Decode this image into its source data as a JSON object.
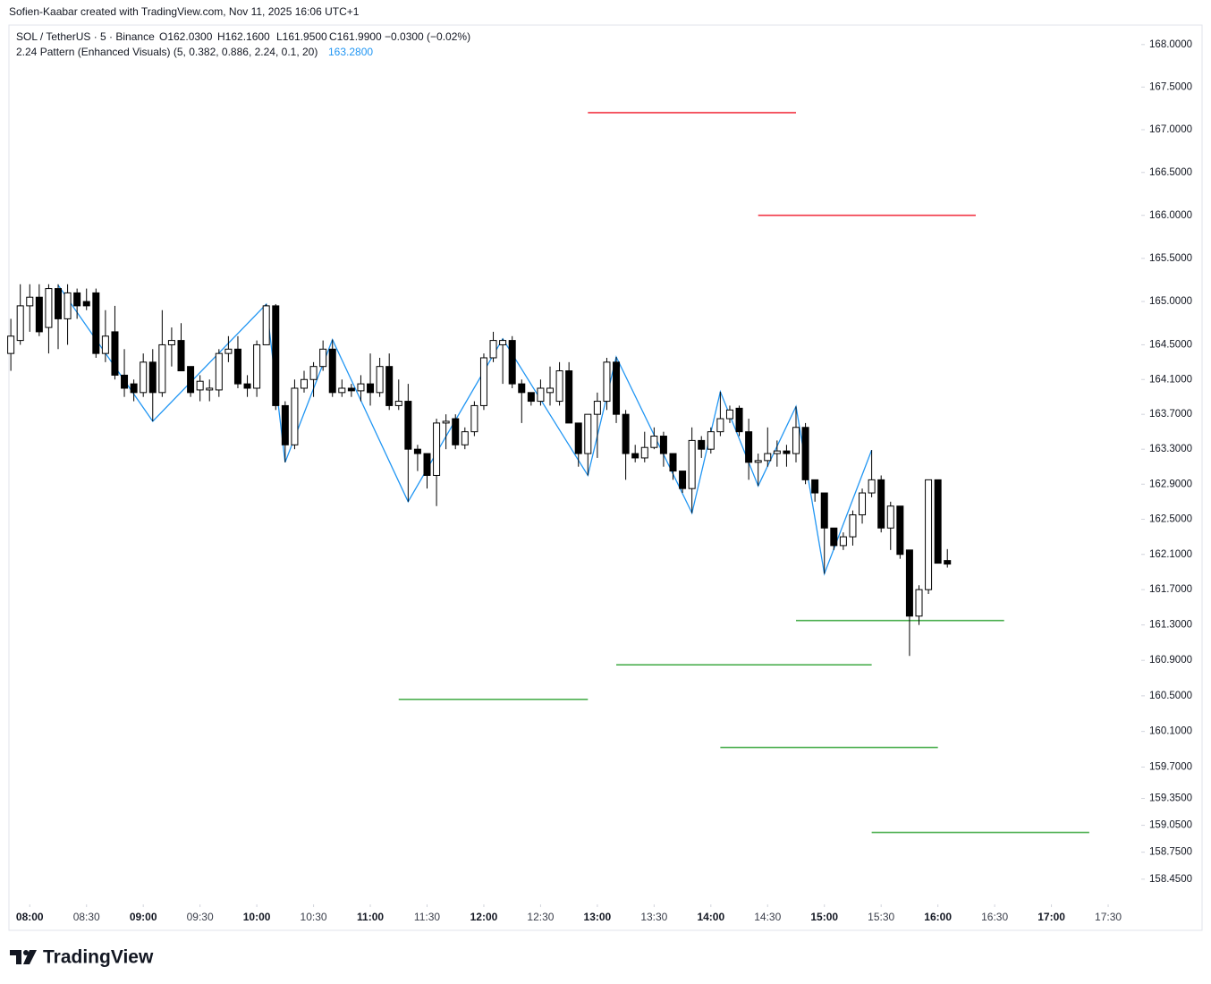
{
  "credit": "Sofien-Kaabar created with TradingView.com, Nov 11, 2025 16:06 UTC+1",
  "logo": "TradingView",
  "header": {
    "symbol": "SOL / TetherUS · 5 · Binance",
    "ohlc": [
      "O162.0300",
      "H162.1600",
      "L161.9500",
      "C161.9900"
    ],
    "change": "−0.0300 (−0.02%)",
    "indicator": "2.24 Pattern (Enhanced Visuals) (5, 0.382, 0.886, 2.24, 0.1, 20)",
    "indicator_value": "163.2800",
    "indicator_color": "#2196f3"
  },
  "chart_data": {
    "type": "candlestick",
    "log_scale": true,
    "up_color": "#ffffff",
    "down_color": "#000000",
    "wick_color": "#000000",
    "x": [
      "07:50",
      "07:55",
      "08:00",
      "08:05",
      "08:10",
      "08:15",
      "08:20",
      "08:25",
      "08:30",
      "08:35",
      "08:40",
      "08:45",
      "08:50",
      "08:55",
      "09:00",
      "09:05",
      "09:10",
      "09:15",
      "09:20",
      "09:25",
      "09:30",
      "09:35",
      "09:40",
      "09:45",
      "09:50",
      "09:55",
      "10:00",
      "10:05",
      "10:10",
      "10:15",
      "10:20",
      "10:25",
      "10:30",
      "10:35",
      "10:40",
      "10:45",
      "10:50",
      "10:55",
      "11:00",
      "11:05",
      "11:10",
      "11:15",
      "11:20",
      "11:25",
      "11:30",
      "11:35",
      "11:40",
      "11:45",
      "11:50",
      "11:55",
      "12:00",
      "12:05",
      "12:10",
      "12:15",
      "12:20",
      "12:25",
      "12:30",
      "12:35",
      "12:40",
      "12:45",
      "12:50",
      "12:55",
      "13:00",
      "13:05",
      "13:10",
      "13:15",
      "13:20",
      "13:25",
      "13:30",
      "13:35",
      "13:40",
      "13:45",
      "13:50",
      "13:55",
      "14:00",
      "14:05",
      "14:10",
      "14:15",
      "14:20",
      "14:25",
      "14:30",
      "14:35",
      "14:40",
      "14:45",
      "14:50",
      "14:55",
      "15:00",
      "15:05",
      "15:10",
      "15:15",
      "15:20",
      "15:25",
      "15:30",
      "15:35",
      "15:40",
      "15:45",
      "15:50",
      "15:55",
      "16:00",
      "16:05"
    ],
    "open": [
      164.4,
      164.55,
      164.95,
      165.05,
      164.7,
      165.15,
      164.8,
      165.1,
      165.0,
      165.1,
      164.4,
      164.65,
      164.15,
      164.05,
      163.95,
      164.3,
      163.95,
      164.5,
      164.55,
      164.25,
      163.98,
      163.98,
      163.98,
      164.4,
      164.45,
      164.05,
      164.0,
      164.5,
      164.95,
      163.8,
      163.35,
      164.0,
      164.1,
      164.25,
      164.45,
      163.95,
      164.0,
      163.97,
      164.05,
      163.95,
      164.25,
      163.8,
      163.85,
      163.3,
      163.25,
      163.0,
      163.6,
      163.65,
      163.35,
      163.5,
      163.8,
      164.35,
      164.5,
      164.55,
      164.05,
      163.95,
      163.85,
      163.95,
      163.85,
      164.2,
      163.6,
      163.25,
      163.7,
      163.85,
      164.3,
      163.7,
      163.25,
      163.2,
      163.32,
      163.45,
      163.25,
      163.05,
      162.85,
      163.4,
      163.3,
      163.5,
      163.65,
      163.77,
      163.5,
      163.15,
      163.17,
      163.25,
      163.28,
      163.25,
      163.55,
      162.95,
      162.8,
      162.4,
      162.2,
      162.3,
      162.55,
      162.8,
      162.95,
      162.4,
      162.65,
      162.15,
      161.4,
      161.7,
      162.95,
      162.03
    ],
    "high": [
      164.8,
      165.2,
      165.2,
      165.2,
      165.2,
      165.2,
      165.2,
      165.15,
      165.15,
      165.15,
      164.9,
      164.95,
      164.45,
      164.1,
      164.4,
      164.45,
      164.9,
      164.7,
      164.75,
      164.25,
      164.15,
      164.1,
      164.45,
      164.6,
      164.6,
      164.15,
      164.55,
      164.97,
      164.97,
      163.85,
      164.1,
      164.2,
      164.3,
      164.55,
      164.56,
      164.1,
      164.05,
      164.15,
      164.4,
      164.35,
      164.4,
      164.1,
      164.05,
      163.35,
      163.25,
      163.65,
      163.7,
      163.7,
      163.55,
      163.85,
      164.4,
      164.65,
      164.57,
      164.6,
      164.1,
      163.95,
      164.1,
      164.25,
      164.3,
      164.3,
      163.6,
      163.7,
      163.95,
      164.35,
      164.36,
      163.75,
      163.35,
      163.5,
      163.55,
      163.5,
      163.25,
      163.05,
      163.55,
      163.45,
      163.55,
      163.96,
      163.8,
      163.8,
      163.65,
      163.25,
      163.55,
      163.4,
      163.35,
      163.79,
      163.6,
      162.95,
      162.8,
      162.4,
      162.35,
      162.6,
      162.85,
      163.29,
      163.0,
      162.7,
      162.65,
      162.15,
      161.75,
      162.95,
      162.95,
      162.16
    ],
    "low": [
      164.2,
      164.5,
      164.65,
      164.6,
      164.4,
      164.45,
      164.5,
      164.8,
      164.9,
      164.35,
      164.3,
      164.1,
      163.9,
      163.85,
      163.9,
      163.62,
      163.9,
      164.25,
      164.2,
      163.9,
      163.85,
      163.85,
      163.9,
      164.3,
      164.0,
      163.9,
      163.9,
      164.5,
      163.75,
      163.15,
      163.3,
      163.95,
      163.9,
      164.2,
      163.9,
      163.9,
      163.9,
      163.85,
      163.8,
      163.9,
      163.75,
      163.75,
      162.7,
      163.05,
      162.85,
      162.65,
      163.3,
      163.3,
      163.3,
      163.45,
      163.75,
      164.3,
      164.05,
      164.0,
      163.6,
      163.8,
      163.8,
      163.8,
      163.8,
      163.6,
      163.1,
      163.0,
      163.2,
      163.75,
      163.6,
      162.95,
      163.15,
      163.15,
      163.3,
      163.1,
      162.95,
      162.8,
      162.57,
      163.2,
      163.25,
      163.45,
      163.6,
      163.45,
      162.95,
      162.88,
      163.1,
      163.1,
      163.1,
      163.15,
      162.9,
      162.7,
      161.88,
      162.15,
      162.15,
      162.2,
      162.45,
      162.75,
      162.35,
      162.15,
      162.05,
      160.95,
      161.3,
      161.65,
      162.0,
      161.95
    ],
    "close": [
      164.6,
      164.95,
      165.05,
      164.65,
      165.15,
      164.8,
      165.1,
      164.95,
      164.95,
      164.4,
      164.6,
      164.15,
      164.0,
      163.95,
      164.3,
      163.95,
      164.5,
      164.55,
      164.2,
      163.95,
      164.08,
      164.0,
      164.4,
      164.45,
      164.05,
      164.0,
      164.5,
      164.95,
      163.8,
      163.35,
      164.0,
      164.1,
      164.25,
      164.45,
      163.95,
      164.0,
      163.97,
      164.05,
      163.95,
      164.25,
      163.8,
      163.85,
      163.3,
      163.25,
      163.0,
      163.6,
      163.62,
      163.35,
      163.5,
      163.8,
      164.35,
      164.55,
      164.55,
      164.05,
      163.95,
      163.85,
      164.0,
      164.0,
      164.2,
      163.6,
      163.25,
      163.7,
      163.85,
      164.3,
      163.7,
      163.25,
      163.2,
      163.32,
      163.45,
      163.25,
      163.05,
      162.85,
      163.4,
      163.3,
      163.5,
      163.65,
      163.75,
      163.5,
      163.15,
      163.17,
      163.25,
      163.28,
      163.25,
      163.55,
      162.95,
      162.8,
      162.4,
      162.2,
      162.3,
      162.55,
      162.8,
      162.95,
      162.4,
      162.65,
      162.1,
      161.4,
      161.7,
      162.95,
      162.0,
      161.99
    ],
    "zigzag": {
      "color": "#2196f3",
      "x": [
        "08:15",
        "09:05",
        "10:05",
        "10:15",
        "10:40",
        "11:20",
        "12:10",
        "12:55",
        "13:10",
        "13:50",
        "14:05",
        "14:25",
        "14:45",
        "15:00",
        "15:25"
      ],
      "values": [
        165.19,
        163.62,
        164.97,
        163.15,
        164.56,
        162.7,
        164.57,
        163.0,
        164.36,
        162.57,
        163.96,
        162.88,
        163.79,
        161.88,
        163.29
      ]
    },
    "levels": [
      {
        "start": "12:55",
        "end": "14:45",
        "value": 167.2,
        "color": "#f23645"
      },
      {
        "start": "14:25",
        "end": "16:20",
        "value": 166.0,
        "color": "#f23645"
      },
      {
        "start": "11:15",
        "end": "12:55",
        "value": 160.46,
        "color": "#4caf50"
      },
      {
        "start": "13:10",
        "end": "15:25",
        "value": 160.85,
        "color": "#4caf50"
      },
      {
        "start": "14:45",
        "end": "16:35",
        "value": 161.35,
        "color": "#4caf50"
      },
      {
        "start": "14:05",
        "end": "16:00",
        "value": 159.92,
        "color": "#4caf50"
      },
      {
        "start": "15:25",
        "end": "17:20",
        "value": 158.97,
        "color": "#4caf50"
      }
    ],
    "xlim": [
      "07:49",
      "17:47"
    ],
    "xticks": [
      "08:00",
      "08:30",
      "09:00",
      "09:30",
      "10:00",
      "10:30",
      "11:00",
      "11:30",
      "12:00",
      "12:30",
      "13:00",
      "13:30",
      "14:00",
      "14:30",
      "15:00",
      "15:30",
      "16:00",
      "16:30",
      "17:00",
      "17:30"
    ],
    "ylim": [
      158.18,
      168.23
    ],
    "yticks": [
      {
        "value": 168,
        "label": "168.0000"
      },
      {
        "value": 167.5,
        "label": "167.5000"
      },
      {
        "value": 167,
        "label": "167.0000"
      },
      {
        "value": 166.5,
        "label": "166.5000"
      },
      {
        "value": 166,
        "label": "166.0000"
      },
      {
        "value": 165.5,
        "label": "165.5000"
      },
      {
        "value": 165,
        "label": "165.0000"
      },
      {
        "value": 164.5,
        "label": "164.5000"
      },
      {
        "value": 164.1,
        "label": "164.1000"
      },
      {
        "value": 163.7,
        "label": "163.7000"
      },
      {
        "value": 163.3,
        "label": "163.3000"
      },
      {
        "value": 162.9,
        "label": "162.9000"
      },
      {
        "value": 162.5,
        "label": "162.5000"
      },
      {
        "value": 162.1,
        "label": "162.1000"
      },
      {
        "value": 161.7,
        "label": "161.7000"
      },
      {
        "value": 161.3,
        "label": "161.3000"
      },
      {
        "value": 160.9,
        "label": "160.9000"
      },
      {
        "value": 160.5,
        "label": "160.5000"
      },
      {
        "value": 160.1,
        "label": "160.1000"
      },
      {
        "value": 159.7,
        "label": "159.7000"
      },
      {
        "value": 159.35,
        "label": "159.3500"
      },
      {
        "value": 159.05,
        "label": "159.0500"
      },
      {
        "value": 158.75,
        "label": "158.7500"
      },
      {
        "value": 158.45,
        "label": "158.4500"
      }
    ]
  }
}
